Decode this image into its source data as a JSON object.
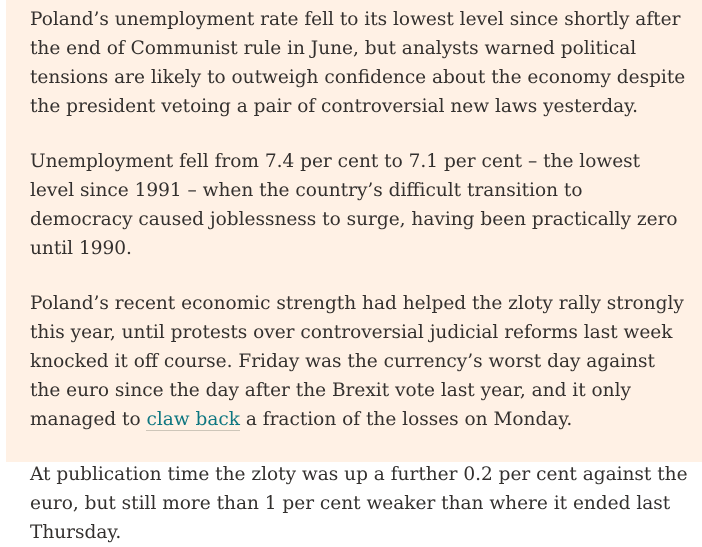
{
  "page": {
    "colors": {
      "background": "#FFF1E5",
      "text": "#33302E",
      "link": "#0D7680",
      "link_underline": "#CEC6B9"
    }
  },
  "article": {
    "paragraphs": [
      {
        "text": "Poland’s unemployment rate fell to its lowest level since shortly after the end of Communist rule in June, but analysts warned political tensions are likely to outweigh confidence about the economy despite the president vetoing a pair of controversial new laws yesterday."
      },
      {
        "text": "Unemployment fell from 7.4 per cent to 7.1 per cent – the lowest level since 1991 – when the country’s difficult transition to democracy caused joblessness to surge, having been practically zero until 1990."
      },
      {
        "pre": "Poland’s recent economic strength had helped the zloty rally strongly this year, until protests over controversial judicial reforms last week knocked it off course. Friday was the currency’s worst day against the euro since the day after the Brexit vote last year, and it only managed to ",
        "link": "claw back",
        "post": " a fraction of the losses on Monday."
      },
      {
        "text": "At publication time the zloty was up a further 0.2 per cent against the euro, but still more than 1 per cent weaker than where it ended last Thursday."
      }
    ]
  }
}
